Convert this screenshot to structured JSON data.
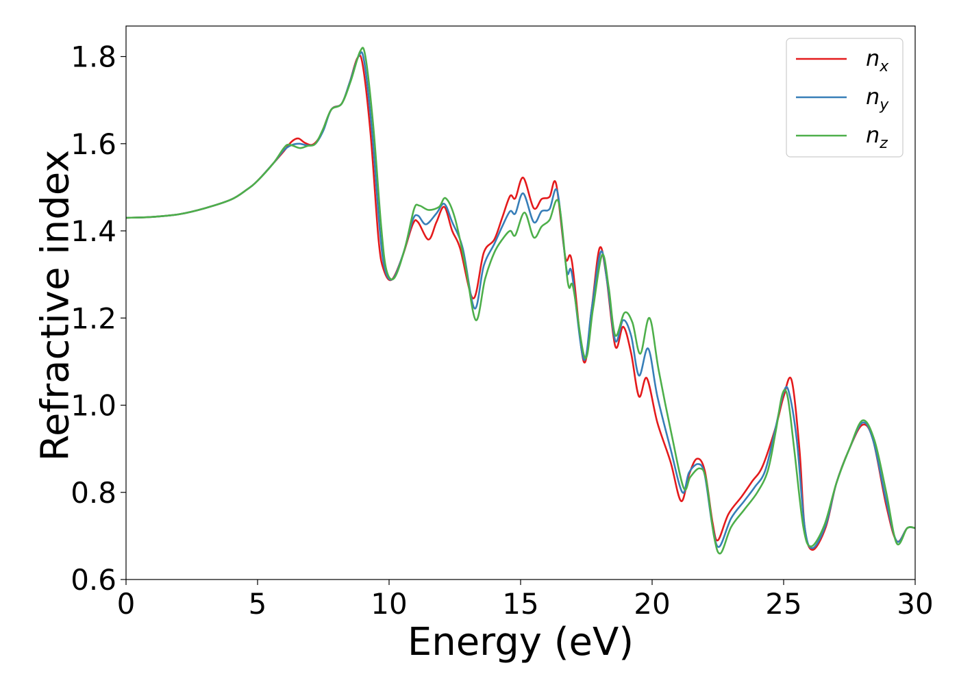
{
  "chart_data": {
    "type": "line",
    "title": "",
    "xlabel": "Energy (eV)",
    "ylabel": "Refractive index",
    "xlim": [
      0,
      30
    ],
    "ylim": [
      0.6,
      1.87
    ],
    "xticks": [
      0,
      5,
      10,
      15,
      20,
      25,
      30
    ],
    "yticks": [
      0.6,
      0.8,
      1.0,
      1.2,
      1.4,
      1.6,
      1.8
    ],
    "grid": false,
    "legend_position": "top-right",
    "series": [
      {
        "name": "n",
        "subscript": "x",
        "color": "#e41a1c",
        "points": [
          [
            0,
            1.43
          ],
          [
            1,
            1.432
          ],
          [
            2,
            1.438
          ],
          [
            3,
            1.452
          ],
          [
            4,
            1.472
          ],
          [
            4.6,
            1.495
          ],
          [
            5,
            1.515
          ],
          [
            5.6,
            1.555
          ],
          [
            6,
            1.583
          ],
          [
            6.3,
            1.605
          ],
          [
            6.55,
            1.612
          ],
          [
            6.8,
            1.602
          ],
          [
            7.1,
            1.598
          ],
          [
            7.4,
            1.62
          ],
          [
            7.8,
            1.678
          ],
          [
            8.2,
            1.692
          ],
          [
            8.5,
            1.74
          ],
          [
            8.8,
            1.797
          ],
          [
            9.0,
            1.78
          ],
          [
            9.3,
            1.62
          ],
          [
            9.6,
            1.38
          ],
          [
            9.8,
            1.31
          ],
          [
            10.1,
            1.288
          ],
          [
            10.5,
            1.34
          ],
          [
            10.9,
            1.415
          ],
          [
            11.1,
            1.42
          ],
          [
            11.5,
            1.38
          ],
          [
            11.8,
            1.42
          ],
          [
            12.1,
            1.455
          ],
          [
            12.4,
            1.4
          ],
          [
            12.7,
            1.36
          ],
          [
            13.2,
            1.245
          ],
          [
            13.6,
            1.35
          ],
          [
            14.0,
            1.38
          ],
          [
            14.3,
            1.43
          ],
          [
            14.6,
            1.48
          ],
          [
            14.8,
            1.475
          ],
          [
            15.1,
            1.522
          ],
          [
            15.5,
            1.452
          ],
          [
            15.8,
            1.473
          ],
          [
            16.1,
            1.478
          ],
          [
            16.35,
            1.508
          ],
          [
            16.7,
            1.34
          ],
          [
            16.95,
            1.33
          ],
          [
            17.4,
            1.1
          ],
          [
            17.7,
            1.22
          ],
          [
            18.0,
            1.36
          ],
          [
            18.25,
            1.3
          ],
          [
            18.6,
            1.135
          ],
          [
            18.9,
            1.18
          ],
          [
            19.2,
            1.12
          ],
          [
            19.5,
            1.02
          ],
          [
            19.8,
            1.062
          ],
          [
            20.2,
            0.96
          ],
          [
            20.7,
            0.87
          ],
          [
            21.1,
            0.78
          ],
          [
            21.4,
            0.84
          ],
          [
            21.7,
            0.877
          ],
          [
            22.0,
            0.85
          ],
          [
            22.3,
            0.73
          ],
          [
            22.5,
            0.69
          ],
          [
            22.9,
            0.75
          ],
          [
            23.4,
            0.79
          ],
          [
            23.8,
            0.825
          ],
          [
            24.2,
            0.86
          ],
          [
            24.7,
            0.95
          ],
          [
            25.0,
            1.02
          ],
          [
            25.3,
            1.058
          ],
          [
            25.6,
            0.9
          ],
          [
            25.8,
            0.72
          ],
          [
            26.1,
            0.668
          ],
          [
            26.6,
            0.72
          ],
          [
            27.0,
            0.82
          ],
          [
            27.5,
            0.9
          ],
          [
            28.0,
            0.955
          ],
          [
            28.4,
            0.92
          ],
          [
            28.9,
            0.77
          ],
          [
            29.3,
            0.688
          ],
          [
            29.7,
            0.718
          ],
          [
            30,
            0.718
          ]
        ]
      },
      {
        "name": "n",
        "subscript": "y",
        "color": "#377eb8",
        "points": [
          [
            0,
            1.43
          ],
          [
            1,
            1.432
          ],
          [
            2,
            1.438
          ],
          [
            3,
            1.452
          ],
          [
            4,
            1.472
          ],
          [
            4.6,
            1.495
          ],
          [
            5,
            1.515
          ],
          [
            5.6,
            1.555
          ],
          [
            6,
            1.585
          ],
          [
            6.3,
            1.597
          ],
          [
            6.6,
            1.6
          ],
          [
            6.9,
            1.596
          ],
          [
            7.2,
            1.6
          ],
          [
            7.5,
            1.63
          ],
          [
            7.8,
            1.678
          ],
          [
            8.2,
            1.692
          ],
          [
            8.5,
            1.74
          ],
          [
            8.85,
            1.802
          ],
          [
            9.05,
            1.79
          ],
          [
            9.35,
            1.63
          ],
          [
            9.65,
            1.4
          ],
          [
            9.85,
            1.31
          ],
          [
            10.15,
            1.29
          ],
          [
            10.55,
            1.35
          ],
          [
            10.9,
            1.425
          ],
          [
            11.1,
            1.435
          ],
          [
            11.4,
            1.415
          ],
          [
            11.8,
            1.44
          ],
          [
            12.1,
            1.462
          ],
          [
            12.4,
            1.42
          ],
          [
            12.8,
            1.36
          ],
          [
            13.25,
            1.222
          ],
          [
            13.6,
            1.32
          ],
          [
            14.0,
            1.37
          ],
          [
            14.3,
            1.41
          ],
          [
            14.6,
            1.445
          ],
          [
            14.8,
            1.44
          ],
          [
            15.1,
            1.486
          ],
          [
            15.5,
            1.42
          ],
          [
            15.8,
            1.445
          ],
          [
            16.1,
            1.45
          ],
          [
            16.4,
            1.49
          ],
          [
            16.75,
            1.31
          ],
          [
            16.95,
            1.302
          ],
          [
            17.4,
            1.105
          ],
          [
            17.7,
            1.22
          ],
          [
            18.05,
            1.352
          ],
          [
            18.3,
            1.28
          ],
          [
            18.6,
            1.148
          ],
          [
            18.9,
            1.195
          ],
          [
            19.2,
            1.16
          ],
          [
            19.5,
            1.068
          ],
          [
            19.85,
            1.13
          ],
          [
            20.2,
            1.02
          ],
          [
            20.7,
            0.9
          ],
          [
            21.15,
            0.8
          ],
          [
            21.4,
            0.845
          ],
          [
            21.75,
            0.865
          ],
          [
            22.0,
            0.84
          ],
          [
            22.3,
            0.72
          ],
          [
            22.55,
            0.675
          ],
          [
            23.0,
            0.74
          ],
          [
            23.5,
            0.78
          ],
          [
            23.9,
            0.812
          ],
          [
            24.3,
            0.85
          ],
          [
            24.7,
            0.95
          ],
          [
            25.0,
            1.03
          ],
          [
            25.2,
            1.03
          ],
          [
            25.5,
            0.92
          ],
          [
            25.8,
            0.72
          ],
          [
            26.1,
            0.672
          ],
          [
            26.6,
            0.725
          ],
          [
            27.0,
            0.82
          ],
          [
            27.5,
            0.9
          ],
          [
            28.0,
            0.96
          ],
          [
            28.4,
            0.92
          ],
          [
            28.9,
            0.78
          ],
          [
            29.3,
            0.688
          ],
          [
            29.7,
            0.718
          ],
          [
            30,
            0.718
          ]
        ]
      },
      {
        "name": "n",
        "subscript": "z",
        "color": "#4daf4a",
        "points": [
          [
            0,
            1.43
          ],
          [
            1,
            1.432
          ],
          [
            2,
            1.438
          ],
          [
            3,
            1.452
          ],
          [
            4,
            1.472
          ],
          [
            4.6,
            1.495
          ],
          [
            5,
            1.515
          ],
          [
            5.6,
            1.555
          ],
          [
            6.0,
            1.59
          ],
          [
            6.2,
            1.598
          ],
          [
            6.6,
            1.59
          ],
          [
            6.9,
            1.595
          ],
          [
            7.2,
            1.6
          ],
          [
            7.5,
            1.635
          ],
          [
            7.8,
            1.678
          ],
          [
            8.2,
            1.692
          ],
          [
            8.55,
            1.745
          ],
          [
            8.9,
            1.812
          ],
          [
            9.1,
            1.8
          ],
          [
            9.4,
            1.64
          ],
          [
            9.7,
            1.41
          ],
          [
            9.9,
            1.31
          ],
          [
            10.2,
            1.292
          ],
          [
            10.6,
            1.36
          ],
          [
            10.95,
            1.45
          ],
          [
            11.15,
            1.458
          ],
          [
            11.5,
            1.448
          ],
          [
            11.9,
            1.455
          ],
          [
            12.15,
            1.475
          ],
          [
            12.5,
            1.43
          ],
          [
            12.9,
            1.32
          ],
          [
            13.3,
            1.195
          ],
          [
            13.65,
            1.29
          ],
          [
            14.0,
            1.35
          ],
          [
            14.3,
            1.38
          ],
          [
            14.6,
            1.4
          ],
          [
            14.8,
            1.39
          ],
          [
            15.15,
            1.442
          ],
          [
            15.5,
            1.385
          ],
          [
            15.8,
            1.41
          ],
          [
            16.1,
            1.425
          ],
          [
            16.45,
            1.465
          ],
          [
            16.8,
            1.28
          ],
          [
            17.0,
            1.27
          ],
          [
            17.45,
            1.108
          ],
          [
            17.75,
            1.22
          ],
          [
            18.1,
            1.345
          ],
          [
            18.35,
            1.27
          ],
          [
            18.6,
            1.16
          ],
          [
            18.95,
            1.212
          ],
          [
            19.25,
            1.19
          ],
          [
            19.55,
            1.118
          ],
          [
            19.9,
            1.2
          ],
          [
            20.25,
            1.08
          ],
          [
            20.75,
            0.93
          ],
          [
            21.2,
            0.81
          ],
          [
            21.45,
            0.835
          ],
          [
            21.8,
            0.855
          ],
          [
            22.05,
            0.83
          ],
          [
            22.35,
            0.7
          ],
          [
            22.6,
            0.66
          ],
          [
            23.0,
            0.72
          ],
          [
            23.5,
            0.76
          ],
          [
            24.0,
            0.8
          ],
          [
            24.4,
            0.85
          ],
          [
            24.7,
            0.94
          ],
          [
            24.95,
            1.025
          ],
          [
            25.15,
            1.02
          ],
          [
            25.4,
            0.9
          ],
          [
            25.75,
            0.72
          ],
          [
            26.05,
            0.676
          ],
          [
            26.55,
            0.725
          ],
          [
            27.0,
            0.82
          ],
          [
            27.5,
            0.9
          ],
          [
            28.0,
            0.965
          ],
          [
            28.45,
            0.92
          ],
          [
            28.9,
            0.8
          ],
          [
            29.3,
            0.683
          ],
          [
            29.7,
            0.718
          ],
          [
            30,
            0.718
          ]
        ]
      }
    ]
  }
}
